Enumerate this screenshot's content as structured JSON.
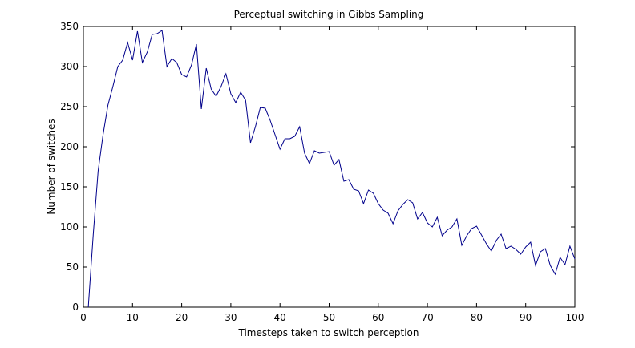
{
  "chart_data": {
    "type": "line",
    "title": "Perceptual switching in Gibbs Sampling",
    "xlabel": "Timesteps taken to switch perception",
    "ylabel": "Number of switches",
    "xlim": [
      0,
      100
    ],
    "ylim": [
      0,
      350
    ],
    "xticks": [
      0,
      10,
      20,
      30,
      40,
      50,
      60,
      70,
      80,
      90,
      100
    ],
    "yticks": [
      0,
      50,
      100,
      150,
      200,
      250,
      300,
      350
    ],
    "grid": false,
    "legend": "none",
    "line_color": "#00008b",
    "series": [
      {
        "x": [
          1,
          2,
          3,
          4,
          5,
          6,
          7,
          8,
          9,
          10,
          11,
          12,
          13,
          14,
          15,
          16,
          17,
          18,
          19,
          20,
          21,
          22,
          23,
          24,
          25,
          26,
          27,
          28,
          29,
          30,
          31,
          32,
          33,
          34,
          35,
          36,
          37,
          38,
          39,
          40,
          41,
          42,
          43,
          44,
          45,
          46,
          47,
          48,
          49,
          50,
          51,
          52,
          53,
          54,
          55,
          56,
          57,
          58,
          59,
          60,
          61,
          62,
          63,
          64,
          65,
          66,
          67,
          68,
          69,
          70,
          71,
          72,
          73,
          74,
          75,
          76,
          77,
          78,
          79,
          80,
          81,
          82,
          83,
          84,
          85,
          86,
          87,
          88,
          89,
          90,
          91,
          92,
          93,
          94,
          95,
          96,
          97,
          98,
          99,
          100
        ],
        "y": [
          0,
          90,
          170,
          215,
          252,
          275,
          300,
          308,
          330,
          308,
          344,
          305,
          318,
          340,
          341,
          345,
          300,
          310,
          305,
          290,
          287,
          302,
          328,
          247,
          298,
          272,
          263,
          275,
          291,
          266,
          255,
          268,
          258,
          205,
          225,
          249,
          248,
          233,
          215,
          197,
          210,
          210,
          213,
          225,
          192,
          179,
          195,
          192,
          193,
          194,
          177,
          184,
          157,
          159,
          147,
          145,
          129,
          146,
          142,
          129,
          121,
          117,
          104,
          120,
          128,
          134,
          130,
          110,
          118,
          105,
          100,
          112,
          89,
          96,
          100,
          110,
          77,
          89,
          98,
          101,
          90,
          79,
          70,
          83,
          91,
          73,
          76,
          72,
          66,
          75,
          81,
          52,
          69,
          73,
          52,
          41,
          62,
          53,
          76,
          60
        ]
      }
    ]
  }
}
